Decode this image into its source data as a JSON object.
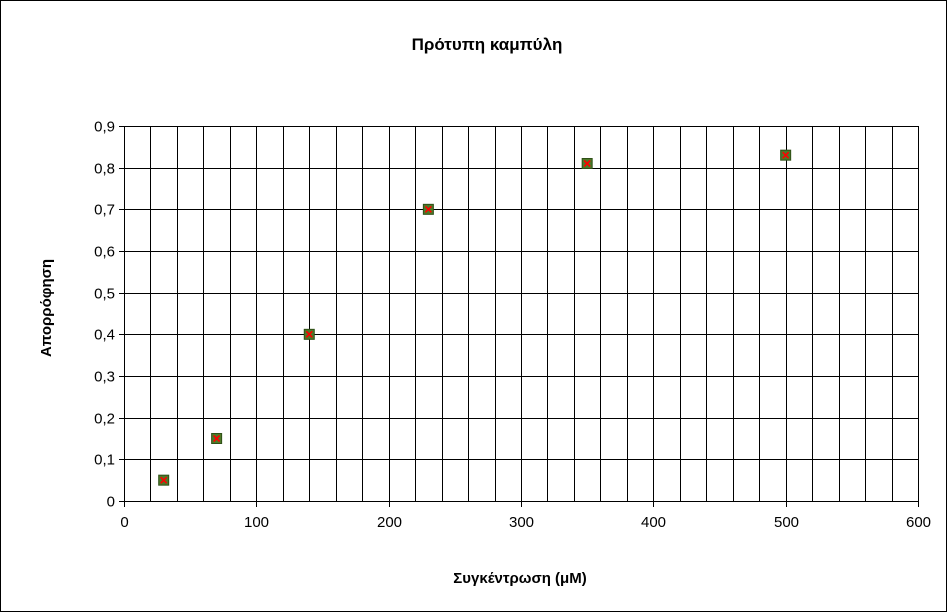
{
  "chart_data": {
    "type": "scatter",
    "title": "Πρότυπη καμπύλη",
    "xlabel": "Συγκέντρωση (μM)",
    "ylabel": "Απορρόφηση",
    "xlim": [
      0,
      600
    ],
    "ylim": [
      0,
      0.9
    ],
    "x_ticks": [
      0,
      100,
      200,
      300,
      400,
      500,
      600
    ],
    "x_tick_labels": [
      "0",
      "100",
      "200",
      "300",
      "400",
      "500",
      "600"
    ],
    "y_ticks": [
      0,
      0.1,
      0.2,
      0.3,
      0.4,
      0.5,
      0.6,
      0.7,
      0.8,
      0.9
    ],
    "y_tick_labels": [
      "0",
      "0,1",
      "0,2",
      "0,3",
      "0,4",
      "0,5",
      "0,6",
      "0,7",
      "0,8",
      "0,9"
    ],
    "x_minor_gridline_step": 20,
    "grid": true,
    "legend": "none",
    "series": [
      {
        "x": [
          30,
          70,
          140,
          230,
          350,
          500
        ],
        "y": [
          0.05,
          0.15,
          0.4,
          0.7,
          0.81,
          0.83
        ],
        "marker_fill": "#4d7a28",
        "marker_cross": "#ff0000"
      }
    ]
  }
}
